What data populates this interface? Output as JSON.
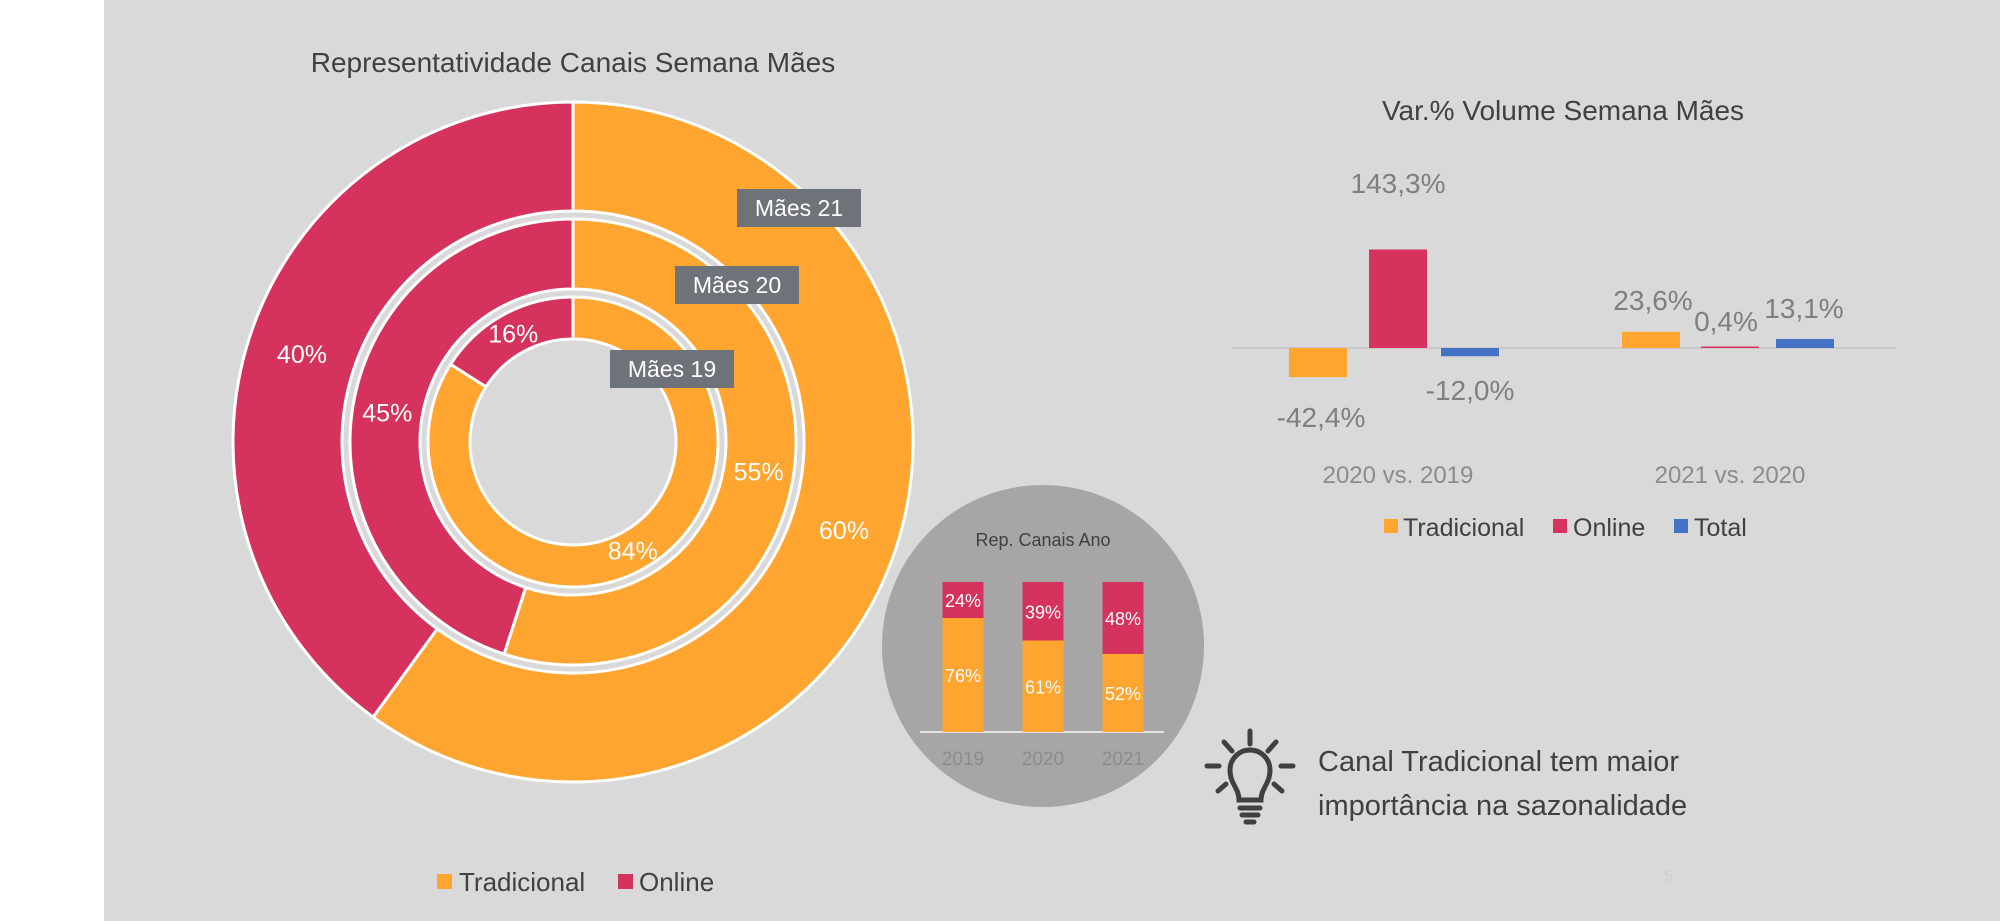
{
  "chart_data": [
    {
      "type": "pie",
      "title": "Representatividade Canais Semana Mães",
      "rings": [
        {
          "name": "Mães 19",
          "values": [
            84,
            16
          ],
          "labels": [
            "84%",
            "16%"
          ]
        },
        {
          "name": "Mães 20",
          "values": [
            55,
            45
          ],
          "labels": [
            "55%",
            "45%"
          ]
        },
        {
          "name": "Mães 21",
          "values": [
            60,
            40
          ],
          "labels": [
            "60%",
            "40%"
          ]
        }
      ],
      "categories": [
        "Tradicional",
        "Online"
      ],
      "colors": [
        "#ffa530",
        "#d5325d"
      ],
      "legend": [
        "Tradicional",
        "Online"
      ]
    },
    {
      "type": "bar",
      "title": "Var.% Volume Semana Mães",
      "categories": [
        "2020 vs. 2019",
        "2021 vs. 2020"
      ],
      "series": [
        {
          "name": "Tradicional",
          "values": [
            -42.4,
            23.6
          ],
          "labels": [
            "-42,4%",
            "23,6%"
          ],
          "color": "#ffa530"
        },
        {
          "name": "Online",
          "values": [
            143.3,
            0.4
          ],
          "labels": [
            "143,3%",
            "0,4%"
          ],
          "color": "#d5325d"
        },
        {
          "name": "Total",
          "values": [
            -12.0,
            13.1
          ],
          "labels": [
            "-12,0%",
            "13,1%"
          ],
          "color": "#4472c4"
        }
      ],
      "legend_position": "bottom"
    },
    {
      "type": "bar",
      "stacked": true,
      "title": "Rep. Canais Ano",
      "categories": [
        "2019",
        "2020",
        "2021"
      ],
      "series": [
        {
          "name": "Tradicional",
          "values": [
            76,
            61,
            52
          ],
          "labels": [
            "76%",
            "61%",
            "52%"
          ],
          "color": "#ffa530"
        },
        {
          "name": "Online",
          "values": [
            24,
            39,
            48
          ],
          "labels": [
            "24%",
            "39%",
            "48%"
          ],
          "color": "#d5325d"
        }
      ]
    }
  ],
  "insight": {
    "icon": "lightbulb-icon",
    "line1": "Canal Tradicional tem maior",
    "line2": "importância na sazonalidade"
  },
  "page_number": "5",
  "colors": {
    "background": "#d9d9d9",
    "tradicional": "#ffa530",
    "online": "#d5325d",
    "total": "#4472c4",
    "tag": "#6d7378",
    "circle": "#a6a6a6"
  }
}
